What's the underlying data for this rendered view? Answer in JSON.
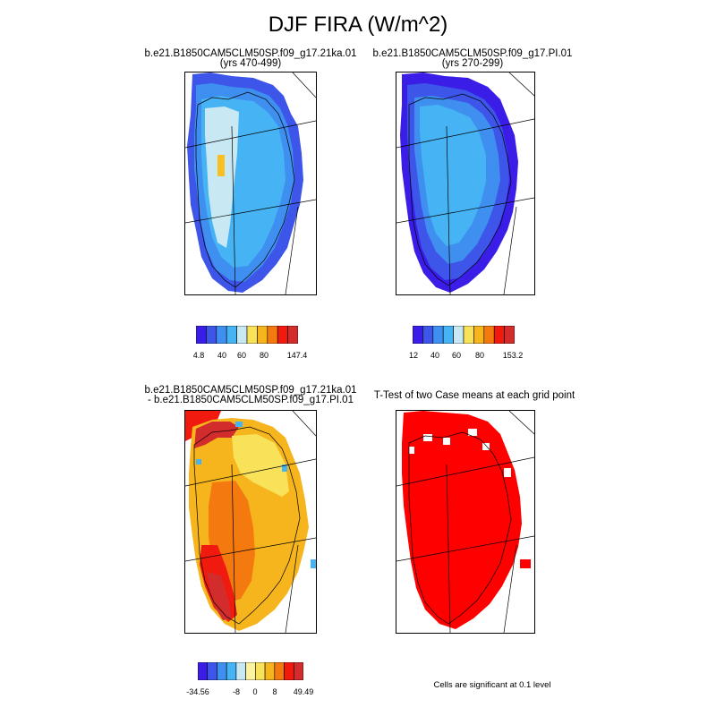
{
  "figure": {
    "title": "DJF FIRA (W/m^2)"
  },
  "panels": [
    {
      "id": "case1",
      "title_line1": "b.e21.B1850CAM5CLM50SP.f09_g17.21ka.01",
      "title_line2": "(yrs 470-499)",
      "colorbar": {
        "colors": [
          "#3a1ee8",
          "#3d55e8",
          "#3e8ff0",
          "#46b4f4",
          "#c8e8f4",
          "#f8e25a",
          "#f6b51c",
          "#f47a10",
          "#f01a0e",
          "#d22c2c"
        ],
        "tick_labels": [
          "4.8",
          "40",
          "60",
          "80",
          "147.4"
        ]
      }
    },
    {
      "id": "case2",
      "title_line1": "b.e21.B1850CAM5CLM50SP.f09_g17.PI.01",
      "title_line2": "(yrs 270-299)",
      "colorbar": {
        "colors": [
          "#3a1ee8",
          "#3d55e8",
          "#3e8ff0",
          "#46b4f4",
          "#c8e8f4",
          "#f8e25a",
          "#f6b51c",
          "#f47a10",
          "#f01a0e",
          "#d22c2c"
        ],
        "tick_labels": [
          "12",
          "40",
          "60",
          "80",
          "153.2"
        ]
      }
    },
    {
      "id": "diff",
      "title_line1": "b.e21.B1850CAM5CLM50SP.f09_g17.21ka.01",
      "title_line2": "- b.e21.B1850CAM5CLM50SP.f09_g17.PI.01",
      "colorbar": {
        "colors": [
          "#3a1ee8",
          "#3d55e8",
          "#3e8ff0",
          "#46b4f4",
          "#c8e8f4",
          "#fbf3a0",
          "#f8e25a",
          "#f6b51c",
          "#f47a10",
          "#f01a0e",
          "#d22c2c"
        ],
        "tick_labels": [
          "-34.56",
          "-8",
          "0",
          "8",
          "49.49"
        ]
      }
    },
    {
      "id": "ttest",
      "title_line1": "T-Test of two Case means at each grid point",
      "title_line2": "",
      "note": "Cells are significant at 0.1 level"
    }
  ],
  "fill_colors": {
    "case1_main": "#46b4f4",
    "case1_inner": "#c8e8f4",
    "case1_edge": "#3e8ff0",
    "case1_coast": "#3d55e8",
    "case1_hot": "#f8c020",
    "case2_main": "#46b4f4",
    "case2_mid": "#3e8ff0",
    "case2_edge": "#3d55e8",
    "case2_coast": "#3a1ee8",
    "diff_main": "#f6b51c",
    "diff_light": "#f8e25a",
    "diff_orange": "#f47a10",
    "diff_red": "#f01a0e",
    "diff_dark": "#d22c2c",
    "diff_blue": "#46b4f4",
    "ttest_sig": "#ff0000"
  }
}
